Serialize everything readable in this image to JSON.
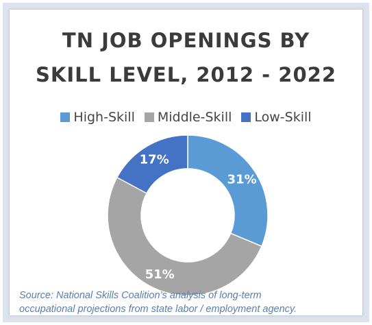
{
  "chart_data": {
    "type": "pie",
    "title_lines": [
      "TN JOB OPENINGS BY",
      "SKILL LEVEL, 2012 - 2022"
    ],
    "categories": [
      "High-Skill",
      "Middle-Skill",
      "Low-Skill"
    ],
    "values": [
      31,
      51,
      17
    ],
    "data_labels": [
      "31%",
      "51%",
      "17%"
    ],
    "colors": [
      "#5b9bd5",
      "#a5a5a5",
      "#4472c4"
    ],
    "legend_position": "top"
  },
  "source": {
    "line1": "Source: National Skills Coalition’s analysis of long-term",
    "line2": "occupational projections from state labor / employment agency."
  }
}
